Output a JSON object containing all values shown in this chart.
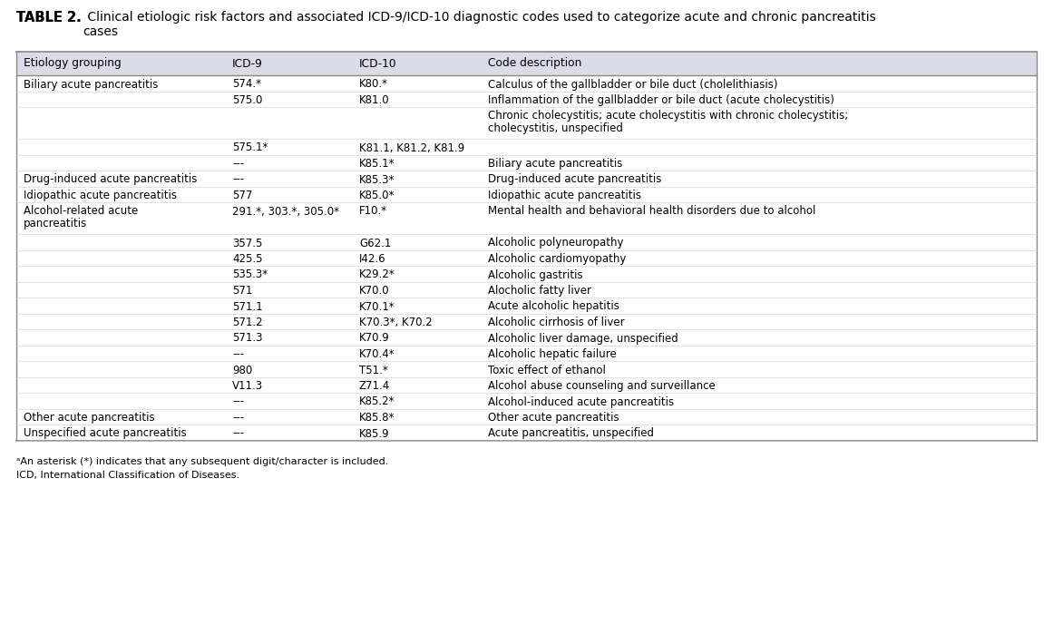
{
  "title_bold": "TABLE 2.",
  "title_rest": " Clinical etiologic risk factors and associated ICD-9/ICD-10 diagnostic codes used to categorize acute and chronic pancreatitis\ncases",
  "header": [
    "Etiology grouping",
    "ICD-9",
    "ICD-10",
    "Code description"
  ],
  "header_bg": "#dcdce8",
  "rows": [
    [
      "Biliary acute pancreatitis",
      "574.*",
      "K80.*",
      "Calculus of the gallbladder or bile duct (cholelithiasis)"
    ],
    [
      "",
      "575.0",
      "K81.0",
      "Inflammation of the gallbladder or bile duct (acute cholecystitis)"
    ],
    [
      "",
      "",
      "",
      "Chronic cholecystitis; acute cholecystitis with chronic cholecystitis;\ncholecystitis, unspecified"
    ],
    [
      "",
      "575.1*",
      "K81.1, K81.2, K81.9",
      ""
    ],
    [
      "",
      "---",
      "K85.1*",
      "Biliary acute pancreatitis"
    ],
    [
      "Drug-induced acute pancreatitis",
      "---",
      "K85.3*",
      "Drug-induced acute pancreatitis"
    ],
    [
      "Idiopathic acute pancreatitis",
      "577",
      "K85.0*",
      "Idiopathic acute pancreatitis"
    ],
    [
      "Alcohol-related acute\npancreatitis",
      "291.*, 303.*, 305.0*",
      "F10.*",
      "Mental health and behavioral health disorders due to alcohol"
    ],
    [
      "",
      "357.5",
      "G62.1",
      "Alcoholic polyneuropathy"
    ],
    [
      "",
      "425.5",
      "I42.6",
      "Alcoholic cardiomyopathy"
    ],
    [
      "",
      "535.3*",
      "K29.2*",
      "Alcoholic gastritis"
    ],
    [
      "",
      "571",
      "K70.0",
      "Alocholic fatty liver"
    ],
    [
      "",
      "571.1",
      "K70.1*",
      "Acute alcoholic hepatitis"
    ],
    [
      "",
      "571.2",
      "K70.3*, K70.2",
      "Alcoholic cirrhosis of liver"
    ],
    [
      "",
      "571.3",
      "K70.9",
      "Alcoholic liver damage, unspecified"
    ],
    [
      "",
      "---",
      "K70.4*",
      "Alcoholic hepatic failure"
    ],
    [
      "",
      "980",
      "T51.*",
      "Toxic effect of ethanol"
    ],
    [
      "",
      "V11.3",
      "Z71.4",
      "Alcohol abuse counseling and surveillance"
    ],
    [
      "",
      "---",
      "K85.2*",
      "Alcohol-induced acute pancreatitis"
    ],
    [
      "Other acute pancreatitis",
      "---",
      "K85.8*",
      "Other acute pancreatitis"
    ],
    [
      "Unspecified acute pancreatitis",
      "---",
      "K85.9",
      "Acute pancreatitis, unspecified"
    ]
  ],
  "footnote1": "ᵃAn asterisk (*) indicates that any subsequent digit/character is included.",
  "footnote2": "ICD, International Classification of Diseases.",
  "bg_white": "#ffffff",
  "border_color": "#888888",
  "text_color": "#000000",
  "font_size": 8.5,
  "header_font_size": 8.8,
  "title_font_size_bold": 10.5,
  "title_font_size_rest": 10.0
}
